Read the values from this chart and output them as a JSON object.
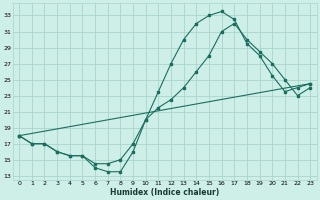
{
  "xlabel": "Humidex (Indice chaleur)",
  "bg_color": "#ceeee8",
  "grid_color": "#aad4cc",
  "line_color": "#1a6e60",
  "line1_x": [
    0,
    1,
    2,
    3,
    4,
    5,
    6,
    7,
    8,
    9,
    10,
    11,
    12,
    13,
    14,
    15,
    16,
    17,
    18,
    19,
    20,
    21,
    22,
    23
  ],
  "line1_y": [
    18.0,
    17.0,
    17.0,
    16.0,
    15.5,
    15.5,
    14.0,
    13.5,
    13.5,
    16.0,
    20.0,
    23.5,
    27.0,
    30.0,
    32.0,
    33.0,
    33.5,
    32.5,
    29.5,
    28.0,
    25.5,
    23.5,
    24.0,
    24.5
  ],
  "line2_x": [
    0,
    1,
    2,
    3,
    4,
    5,
    6,
    7,
    8,
    9,
    10,
    11,
    12,
    13,
    14,
    15,
    16,
    17,
    18,
    19,
    20,
    21,
    22,
    23
  ],
  "line2_y": [
    18.0,
    17.0,
    17.0,
    16.0,
    15.5,
    15.5,
    14.5,
    14.5,
    15.0,
    17.0,
    20.0,
    21.5,
    22.5,
    24.0,
    26.0,
    28.0,
    31.0,
    32.0,
    30.0,
    28.5,
    27.0,
    25.0,
    23.0,
    24.0
  ],
  "line3_x": [
    0,
    23
  ],
  "line3_y": [
    18.0,
    24.5
  ],
  "xlim": [
    -0.5,
    23.5
  ],
  "ylim": [
    12.5,
    34.5
  ],
  "yticks": [
    13,
    15,
    17,
    19,
    21,
    23,
    25,
    27,
    29,
    31,
    33
  ],
  "xticks": [
    0,
    1,
    2,
    3,
    4,
    5,
    6,
    7,
    8,
    9,
    10,
    11,
    12,
    13,
    14,
    15,
    16,
    17,
    18,
    19,
    20,
    21,
    22,
    23
  ],
  "xlabel_fontsize": 5.5,
  "tick_fontsize": 4.5
}
